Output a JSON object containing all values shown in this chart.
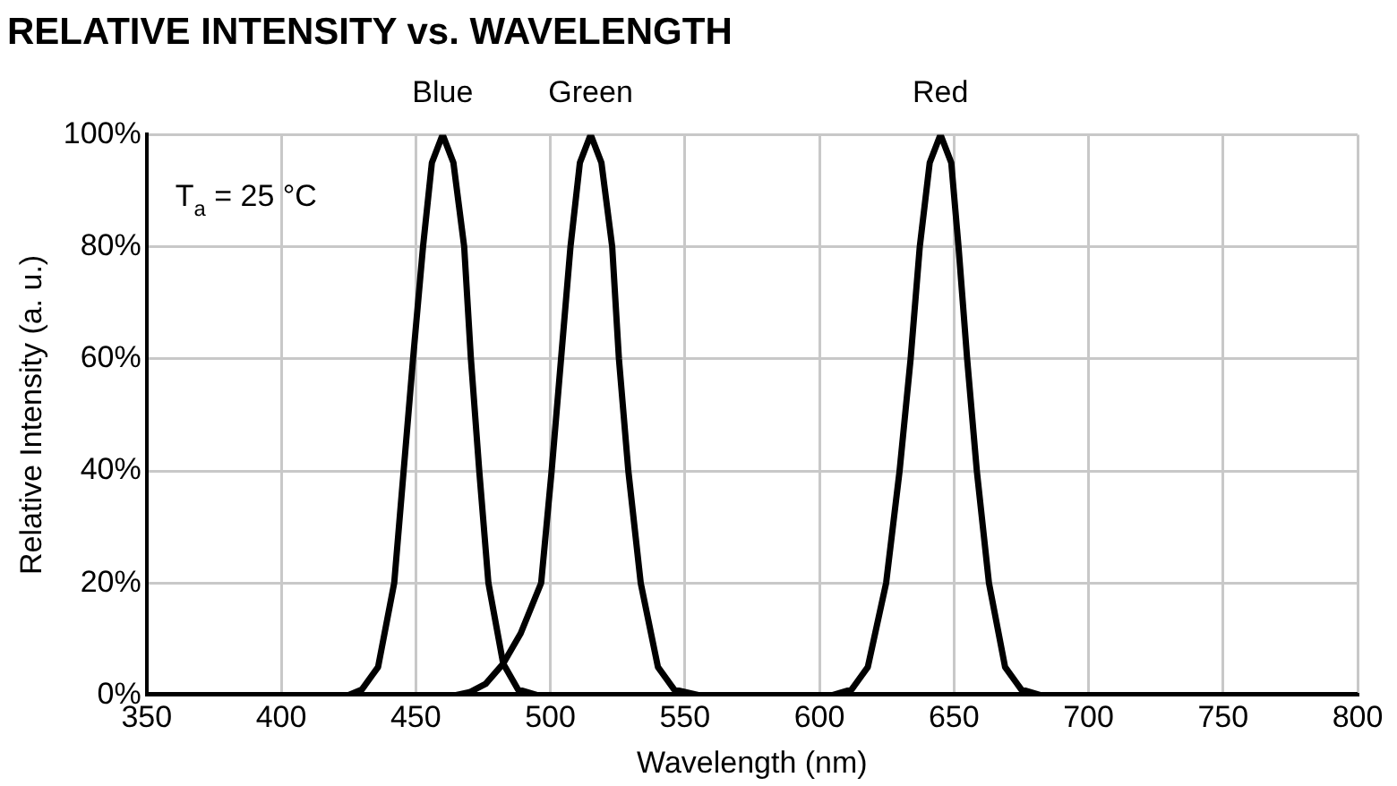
{
  "chart_data": {
    "type": "line",
    "title": "RELATIVE INTENSITY vs. WAVELENGTH",
    "xlabel": "Wavelength (nm)",
    "ylabel": "Relative Intensity (a. u.)",
    "annotations": [
      "T$_{a}$ = 25 °C"
    ],
    "xlim": [
      350,
      800
    ],
    "xticks": [
      350,
      400,
      450,
      500,
      550,
      600,
      650,
      700,
      750,
      800
    ],
    "ylim": [
      0,
      100
    ],
    "yticks": [
      {
        "value": 0,
        "label": "0%"
      },
      {
        "value": 20,
        "label": "20%"
      },
      {
        "value": 40,
        "label": "40%"
      },
      {
        "value": 60,
        "label": "60%"
      },
      {
        "value": 80,
        "label": "80%"
      },
      {
        "value": 100,
        "label": "100%"
      }
    ],
    "grid": true,
    "legend": false,
    "marker": "none",
    "line_style": "solid",
    "series": [
      {
        "name": "Blue",
        "color": "#000000",
        "x": [
          350,
          420,
          425,
          430,
          436,
          442,
          445.5,
          449,
          452.7,
          456,
          460,
          464,
          468,
          470.5,
          473.6,
          477,
          482.5,
          488,
          495,
          500,
          800
        ],
        "values": [
          0,
          0,
          0,
          1,
          5,
          20,
          40,
          60,
          80,
          95,
          100,
          95,
          80,
          60,
          40,
          20,
          5.6,
          1,
          0,
          0,
          0
        ]
      },
      {
        "name": "Green",
        "color": "#000000",
        "x": [
          350,
          465,
          470,
          476,
          482.5,
          489,
          496.6,
          500.5,
          504,
          507.5,
          511,
          515,
          519,
          523,
          525.5,
          529,
          533.6,
          540,
          546,
          555,
          800
        ],
        "values": [
          0,
          0,
          0.5,
          2,
          5.6,
          11,
          20,
          40,
          60,
          80,
          95,
          100,
          95,
          80,
          60,
          40,
          20,
          5,
          1,
          0,
          0
        ]
      },
      {
        "name": "Red",
        "color": "#000000",
        "x": [
          350,
          605,
          612,
          618,
          624.8,
          629.8,
          633.9,
          637.3,
          641,
          645,
          649,
          651.7,
          654.9,
          658.5,
          663,
          669,
          675,
          682,
          800
        ],
        "values": [
          0,
          0,
          1,
          5,
          20,
          40,
          60,
          80,
          95,
          100,
          95,
          80,
          60,
          40,
          20,
          5,
          1,
          0,
          0
        ]
      }
    ]
  }
}
